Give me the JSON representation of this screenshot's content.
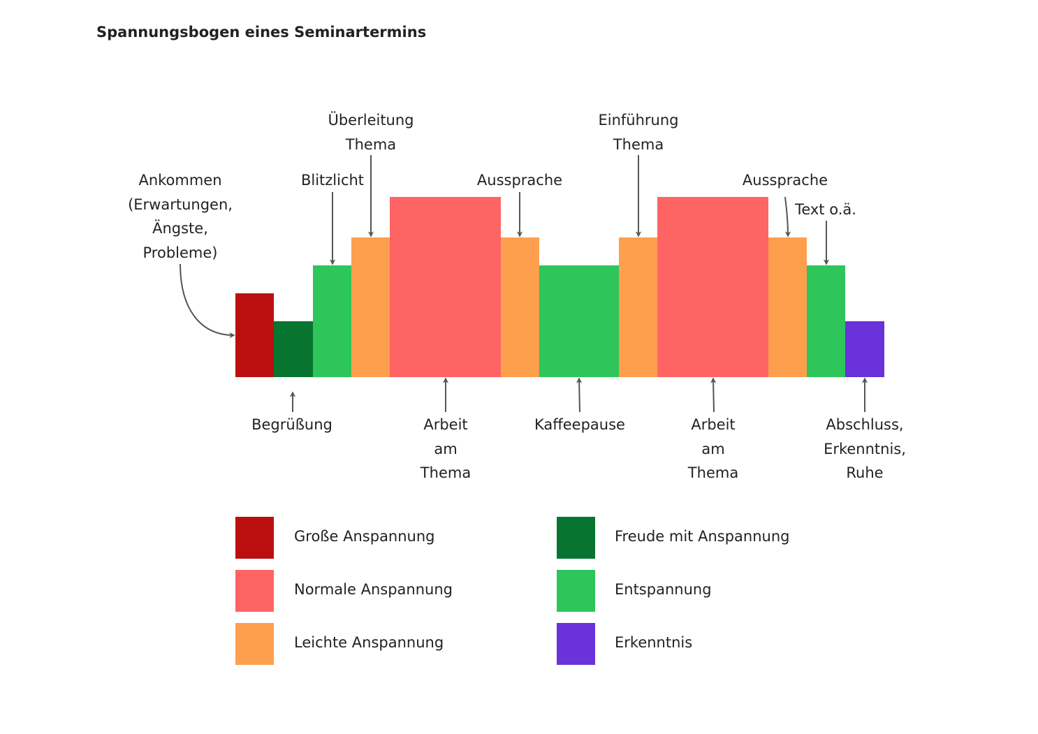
{
  "title": "Spannungsbogen eines Seminartermins",
  "colors": {
    "grosse": "#BB0F0F",
    "freude": "#077530",
    "entspannung": "#2EC55B",
    "leichte": "#FE9F4E",
    "normale": "#FF6464",
    "erkenntnis": "#6A32D9",
    "arrow": "#555555"
  },
  "bars": [
    {
      "category": "grosse"
    },
    {
      "category": "freude"
    },
    {
      "category": "entspannung"
    },
    {
      "category": "leichte"
    },
    {
      "category": "normale"
    },
    {
      "category": "leichte"
    },
    {
      "category": "entspannung"
    },
    {
      "category": "leichte"
    },
    {
      "category": "normale"
    },
    {
      "category": "leichte"
    },
    {
      "category": "entspannung"
    },
    {
      "category": "erkenntnis"
    }
  ],
  "annotations_top": [
    {
      "lines": [
        "Ankommen",
        "(Erwartungen,",
        "Ängste,",
        "Probleme)"
      ]
    },
    {
      "lines": [
        "Blitzlicht"
      ]
    },
    {
      "lines": [
        "Überleitung",
        "Thema"
      ]
    },
    {
      "lines": [
        "Aussprache"
      ]
    },
    {
      "lines": [
        "Einführung",
        "Thema"
      ]
    },
    {
      "lines": [
        "Aussprache"
      ]
    },
    {
      "lines": [
        "Text o.ä."
      ]
    }
  ],
  "annotations_bottom": [
    {
      "lines": [
        "Begrüßung"
      ]
    },
    {
      "lines": [
        "Arbeit",
        "am",
        "Thema"
      ]
    },
    {
      "lines": [
        "Kaffeepause"
      ]
    },
    {
      "lines": [
        "Arbeit",
        "am",
        "Thema"
      ]
    },
    {
      "lines": [
        "Abschluss,",
        "Erkenntnis,",
        "Ruhe"
      ]
    }
  ],
  "legend": [
    {
      "category": "grosse",
      "label": "Große Anspannung"
    },
    {
      "category": "normale",
      "label": "Normale Anspannung"
    },
    {
      "category": "leichte",
      "label": "Leichte Anspannung"
    },
    {
      "category": "freude",
      "label": "Freude mit Anspannung"
    },
    {
      "category": "entspannung",
      "label": "Entspannung"
    },
    {
      "category": "erkenntnis",
      "label": "Erkenntnis"
    }
  ]
}
